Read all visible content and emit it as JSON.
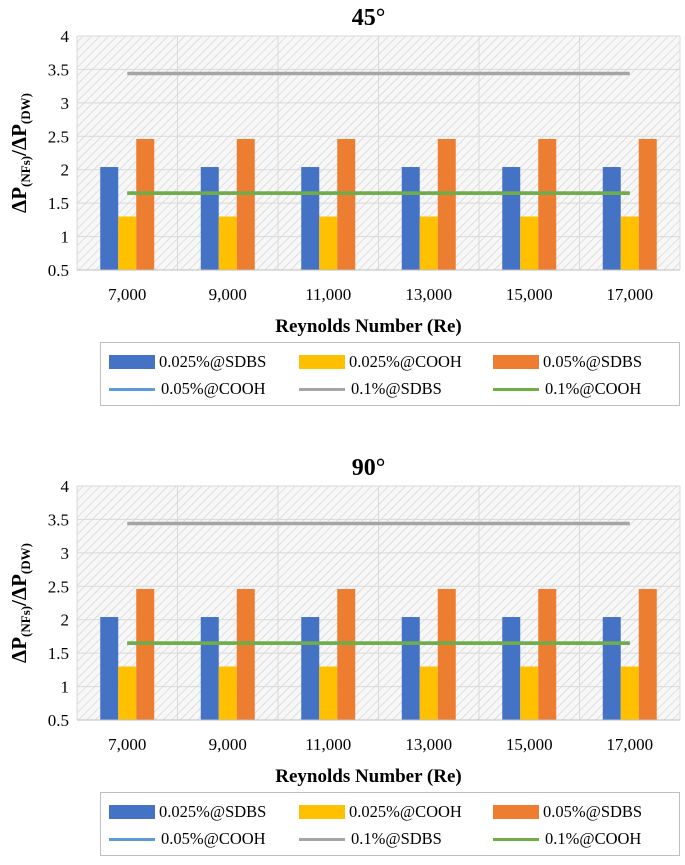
{
  "chart_data": [
    {
      "type": "bar",
      "title": "45°",
      "xlabel": "Reynolds Number (Re)",
      "ylabel": "ΔP(NFs)/ΔP(DW)",
      "ylim": [
        0.5,
        4
      ],
      "yticks": [
        "0.5",
        "1",
        "1.5",
        "2",
        "2.5",
        "3",
        "3.5",
        "4"
      ],
      "categories": [
        "7,000",
        "9,000",
        "11,000",
        "13,000",
        "15,000",
        "17,000"
      ],
      "grid": true,
      "legend_position": "bottom",
      "series": [
        {
          "name": "0.025%@SDBS",
          "kind": "bar",
          "color": "#4472C4",
          "values": [
            2.04,
            2.04,
            2.04,
            2.04,
            2.04,
            2.04
          ]
        },
        {
          "name": "0.025%@COOH",
          "kind": "bar",
          "color": "#FFC000",
          "values": [
            1.3,
            1.3,
            1.3,
            1.3,
            1.3,
            1.3
          ]
        },
        {
          "name": "0.05%@SDBS",
          "kind": "bar",
          "color": "#ED7D31",
          "values": [
            2.46,
            2.46,
            2.46,
            2.46,
            2.46,
            2.46
          ]
        },
        {
          "name": "0.05%@COOH",
          "kind": "line",
          "color": "#5B9BD5",
          "values": [
            1.65,
            1.65,
            1.65,
            1.65,
            1.65,
            1.65
          ]
        },
        {
          "name": "0.1%@SDBS",
          "kind": "line",
          "color": "#A5A5A5",
          "values": [
            3.44,
            3.44,
            3.44,
            3.44,
            3.44,
            3.44
          ]
        },
        {
          "name": "0.1%@COOH",
          "kind": "line",
          "color": "#70AD47",
          "values": [
            1.65,
            1.65,
            1.65,
            1.65,
            1.65,
            1.65
          ]
        }
      ]
    },
    {
      "type": "bar",
      "title": "90°",
      "xlabel": "Reynolds Number (Re)",
      "ylabel": "ΔP(NFs)/ΔP(DW)",
      "ylim": [
        0.5,
        4
      ],
      "yticks": [
        "0.5",
        "1",
        "1.5",
        "2",
        "2.5",
        "3",
        "3.5",
        "4"
      ],
      "categories": [
        "7,000",
        "9,000",
        "11,000",
        "13,000",
        "15,000",
        "17,000"
      ],
      "grid": true,
      "legend_position": "bottom",
      "series": [
        {
          "name": "0.025%@SDBS",
          "kind": "bar",
          "color": "#4472C4",
          "values": [
            2.04,
            2.04,
            2.04,
            2.04,
            2.04,
            2.04
          ]
        },
        {
          "name": "0.025%@COOH",
          "kind": "bar",
          "color": "#FFC000",
          "values": [
            1.3,
            1.3,
            1.3,
            1.3,
            1.3,
            1.3
          ]
        },
        {
          "name": "0.05%@SDBS",
          "kind": "bar",
          "color": "#ED7D31",
          "values": [
            2.46,
            2.46,
            2.46,
            2.46,
            2.46,
            2.46
          ]
        },
        {
          "name": "0.05%@COOH",
          "kind": "line",
          "color": "#5B9BD5",
          "values": [
            1.65,
            1.65,
            1.65,
            1.65,
            1.65,
            1.65
          ]
        },
        {
          "name": "0.1%@SDBS",
          "kind": "line",
          "color": "#A5A5A5",
          "values": [
            3.44,
            3.44,
            3.44,
            3.44,
            3.44,
            3.44
          ]
        },
        {
          "name": "0.1%@COOH",
          "kind": "line",
          "color": "#70AD47",
          "values": [
            1.65,
            1.65,
            1.65,
            1.65,
            1.65,
            1.65
          ]
        }
      ]
    }
  ]
}
